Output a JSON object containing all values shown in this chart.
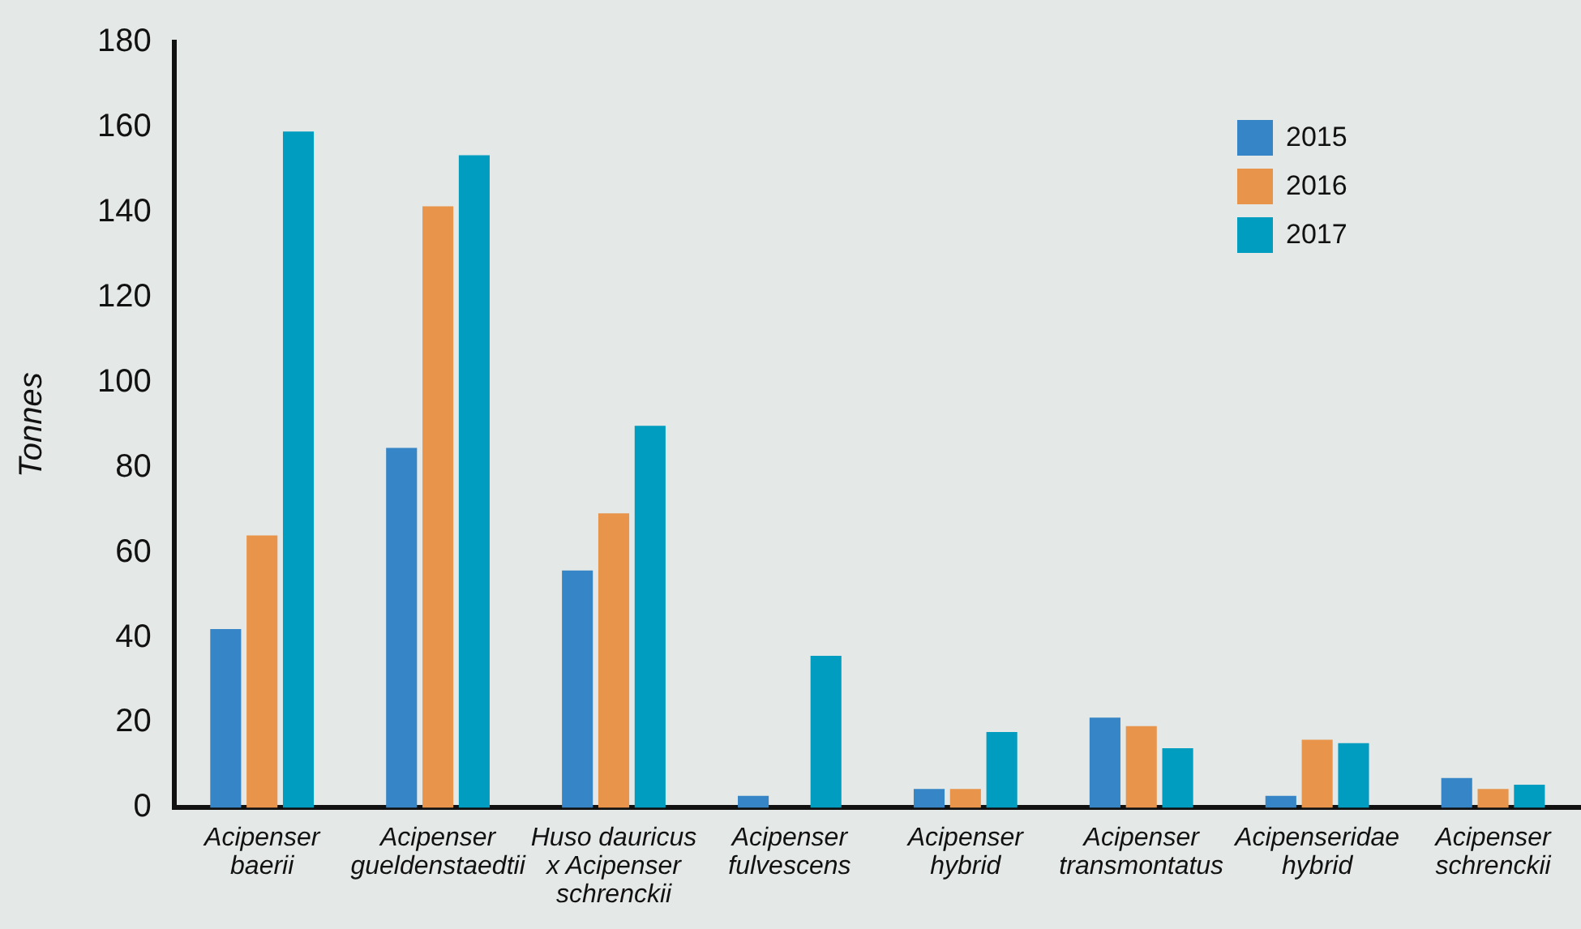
{
  "chart_data": {
    "type": "bar",
    "ylabel": "Tonnes",
    "categories": [
      "Acipenser\nbaerii",
      "Acipenser\ngueldenstaedtii",
      "Huso dauricus\nx Acipenser\nschrenckii",
      "Acipenser\nfulvescens",
      "Acipenser\nhybrid",
      "Acipenser\ntransmontatus",
      "Acipenseridae\nhybrid",
      "Acipenser\nschrenckii"
    ],
    "series": [
      {
        "name": "2015",
        "color": "#3585c7",
        "values": [
          42,
          84.6,
          55.8,
          2.8,
          4.4,
          21.2,
          2.8,
          7
        ]
      },
      {
        "name": "2016",
        "color": "#e8954b",
        "values": [
          64,
          141.4,
          69.2,
          0,
          4.4,
          19.2,
          16,
          4.4
        ]
      },
      {
        "name": "2017",
        "color": "#009dc0",
        "values": [
          159,
          153.4,
          89.8,
          35.7,
          17.8,
          14,
          15.2,
          5.4
        ]
      }
    ],
    "ylim": [
      0,
      180
    ],
    "yticks": [
      0,
      20,
      40,
      60,
      80,
      100,
      120,
      140,
      160,
      180
    ],
    "grid": false,
    "legend": "top right"
  }
}
